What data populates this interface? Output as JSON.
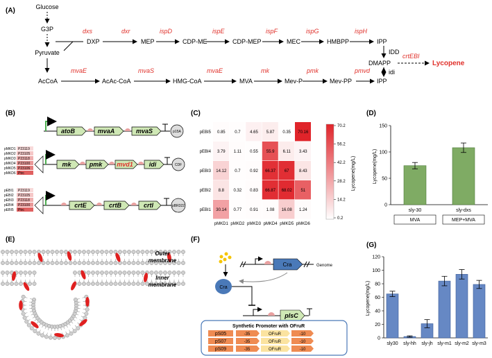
{
  "panels": [
    "(A)",
    "(B)",
    "(C)",
    "(D)",
    "(E)",
    "(F)",
    "(G)"
  ],
  "pathway": {
    "metabolites": {
      "glucose": "Glucose",
      "g3p": "G3P",
      "pyruvate": "Pyruvate",
      "dxp": "DXP",
      "mep": "MEP",
      "cdpme": "CDP-ME",
      "cdpmep": "CDP-MEP",
      "mec": "MEC",
      "hmbpp": "HMBPP",
      "ipp_top": "IPP",
      "dmapp": "DMAPP",
      "ipp_bot": "IPP",
      "acoa": "AcCoA",
      "acac": "AcAc-CoA",
      "hmg": "HMG-CoA",
      "mva": "MVA",
      "mevp": "Mev-P",
      "mevpp": "Mev-PP",
      "lycopene": "Lycopene"
    },
    "enzymes_top": [
      "dxs",
      "dxr",
      "ispD",
      "ispE",
      "ispF",
      "ispG",
      "ispH"
    ],
    "enzymes_bottom": [
      "mvaE",
      "mvaS",
      "mvaE",
      "mk",
      "pmk",
      "pmvd"
    ],
    "idd": "IDD",
    "idi": "idi",
    "crtebi": "crtEBI"
  },
  "panel_b": {
    "op1": [
      "atoB",
      "mvaA",
      "mvaS"
    ],
    "op1_plasmid": "p15A",
    "op2": [
      "mk",
      "pmk",
      "mvd1",
      "idi"
    ],
    "op2_plasmid": "CDF",
    "op3": [
      "crtE",
      "crtB",
      "crtI"
    ],
    "op3_plasmid": "pBR322",
    "lib2": [
      "pMKD1",
      "pMKD2",
      "pMKD3",
      "pMKD4",
      "pMKD5",
      "pMKD6"
    ],
    "lib3": [
      "pEBI1",
      "pEBI2",
      "pEBI3",
      "pEBI4",
      "pEBI5"
    ],
    "prom2": [
      "P23119",
      "P23105",
      "P23118",
      "P23100",
      "P23106",
      "Ptrc"
    ],
    "prom3": [
      "P23119",
      "P23105",
      "P23118",
      "P23100",
      "Ptrc"
    ]
  },
  "heatmap": {
    "rows": [
      "pEBI5",
      "pEBI4",
      "pEBI3",
      "pEBI2",
      "pEBI1"
    ],
    "cols": [
      "pMKD1",
      "pMKD2",
      "pMKD3",
      "pMKD4",
      "pMKD5",
      "pMKD6"
    ],
    "values": [
      [
        "0.85",
        "0.7",
        "4.65",
        "5.87",
        "0.35",
        "70.16"
      ],
      [
        "3.79",
        "1.11",
        "0.55",
        "55.9",
        "6.11",
        "3.43"
      ],
      [
        "14.12",
        "0.7",
        "0.92",
        "66.37",
        "67",
        "8.43"
      ],
      [
        "8.8",
        "0.32",
        "0.83",
        "66.87",
        "68.02",
        "51"
      ],
      [
        "30.14",
        "0.77",
        "0.91",
        "1.08",
        "16.08",
        "1.24"
      ]
    ],
    "numeric": [
      [
        0.85,
        0.7,
        4.65,
        5.87,
        0.35,
        70.16
      ],
      [
        3.79,
        1.11,
        0.55,
        55.9,
        6.11,
        3.43
      ],
      [
        14.12,
        0.7,
        0.92,
        66.37,
        67,
        8.43
      ],
      [
        8.8,
        0.32,
        0.83,
        66.87,
        68.02,
        51
      ],
      [
        30.14,
        0.77,
        0.91,
        1.08,
        16.08,
        1.24
      ]
    ],
    "colorbar_title": "Lycopene(mg/L)",
    "colorbar_ticks": [
      "70.2",
      "56.2",
      "42.2",
      "28.2",
      "14.2",
      "0.2"
    ],
    "max": 70.2
  },
  "chart_d": {
    "ylabel": "Lycopene(mg/L)",
    "yticks": [
      "0",
      "50",
      "100",
      "150"
    ],
    "categories": [
      "sly-30",
      "sly-dxs"
    ],
    "values": [
      74,
      108
    ],
    "errors": [
      6,
      9
    ],
    "boxes": [
      "MVA",
      "MEP+MVA"
    ],
    "ymax": 150
  },
  "panel_e": {
    "outer": "Outer",
    "outer2": "membrane",
    "inner": "Inner",
    "inner2": "membrane"
  },
  "panel_f": {
    "cra": "Cra",
    "genome": "Genome",
    "plsc": "plsC",
    "title": "Synthetic Promoter with OFruR",
    "ofrur": "OFruR",
    "m35": "-35",
    "m10": "-10",
    "promoters": [
      "pS05",
      "pS07",
      "pS09"
    ]
  },
  "chart_g": {
    "ylabel": "Lycopene(mg/L)",
    "yticks": [
      "0",
      "20",
      "40",
      "60",
      "80",
      "100",
      "120"
    ],
    "categories": [
      "sly30",
      "sly-hh",
      "sly-jh",
      "sly-m1",
      "sly-m2",
      "sly-m3"
    ],
    "values": [
      65,
      2,
      21,
      84,
      94,
      79
    ],
    "errors": [
      4,
      1,
      6,
      7,
      7,
      6
    ],
    "ymax": 120
  }
}
